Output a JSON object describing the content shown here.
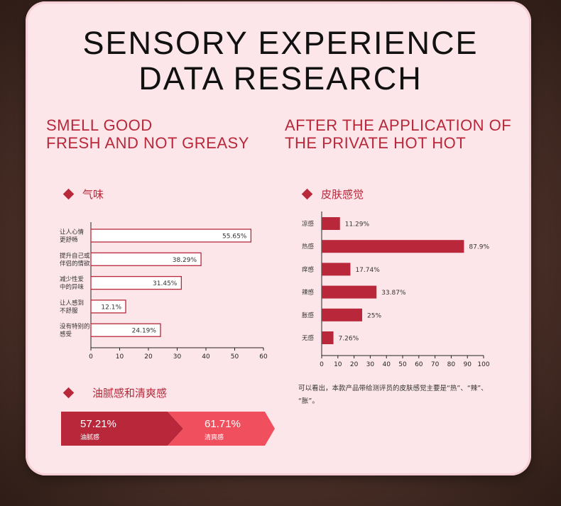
{
  "title": {
    "line1": "SENSORY EXPERIENCE",
    "line2": "DATA RESEARCH"
  },
  "left_subtitle": {
    "line1": "SMELL GOOD",
    "line2": "FRESH AND NOT GREASY"
  },
  "right_subtitle": {
    "line1": "AFTER THE APPLICATION OF",
    "line2": "THE PRIVATE HOT HOT"
  },
  "colors": {
    "accent": "#b8283a",
    "accent_light": "#f0505e"
  },
  "chart_data": [
    {
      "type": "bar",
      "orientation": "horizontal",
      "title": "气味",
      "categories": [
        "让人心情\n更舒畅",
        "提升自己或\n伴侣的情欲",
        "减少性爱\n中的异味",
        "让人感到\n不舒服",
        "没有特别的\n感受"
      ],
      "values": [
        55.65,
        38.29,
        31.45,
        12.1,
        24.19
      ],
      "value_labels": [
        "55.65%",
        "38.29%",
        "31.45%",
        "12.1%",
        "24.19%"
      ],
      "xlim": [
        0,
        60
      ],
      "xticks": [
        0,
        10,
        20,
        30,
        40,
        50,
        60
      ],
      "bar_style": "outline"
    },
    {
      "type": "bar",
      "orientation": "horizontal",
      "title": "皮肤感觉",
      "categories": [
        "凉感",
        "热感",
        "痒感",
        "辣感",
        "胀感",
        "无感"
      ],
      "values": [
        11.29,
        87.9,
        17.74,
        33.87,
        25,
        7.26
      ],
      "value_labels": [
        "11.29%",
        "87.9%",
        "17.74%",
        "33.87%",
        "25%",
        "7.26%"
      ],
      "xlim": [
        0,
        100
      ],
      "xticks": [
        0,
        10,
        20,
        30,
        40,
        50,
        60,
        70,
        80,
        90,
        100
      ],
      "bar_style": "filled"
    }
  ],
  "greasy_section": {
    "title": "油腻感和清爽感",
    "items": [
      {
        "pct": "57.21%",
        "label": "油腻感",
        "value": 57.21
      },
      {
        "pct": "61.71%",
        "label": "清爽感",
        "value": 61.71
      }
    ]
  },
  "note": {
    "line1": "可以看出，本款产品带给测评员的皮肤感觉主要是“热”、“辣”、",
    "line2": "“胀”。"
  }
}
